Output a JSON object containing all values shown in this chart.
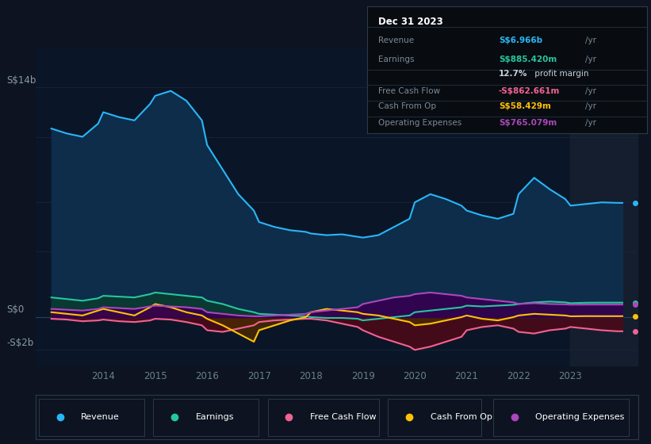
{
  "bg_color": "#0d1320",
  "plot_bg_color": "#0a1628",
  "grid_color": "#1a2f4a",
  "ylabel_top": "S$14b",
  "ylabel_zero": "S$0",
  "ylabel_neg": "-S$2b",
  "years": [
    2013.0,
    2013.3,
    2013.6,
    2013.9,
    2014.0,
    2014.3,
    2014.6,
    2014.9,
    2015.0,
    2015.3,
    2015.6,
    2015.9,
    2016.0,
    2016.3,
    2016.6,
    2016.9,
    2017.0,
    2017.3,
    2017.6,
    2017.9,
    2018.0,
    2018.3,
    2018.6,
    2018.9,
    2019.0,
    2019.3,
    2019.6,
    2019.9,
    2020.0,
    2020.3,
    2020.6,
    2020.9,
    2021.0,
    2021.3,
    2021.6,
    2021.9,
    2022.0,
    2022.3,
    2022.6,
    2022.9,
    2023.0,
    2023.3,
    2023.6,
    2023.9,
    2024.0
  ],
  "revenue": [
    11.5,
    11.2,
    11.0,
    11.8,
    12.5,
    12.2,
    12.0,
    13.0,
    13.5,
    13.8,
    13.2,
    12.0,
    10.5,
    9.0,
    7.5,
    6.5,
    5.8,
    5.5,
    5.3,
    5.2,
    5.1,
    5.0,
    5.05,
    4.9,
    4.85,
    5.0,
    5.5,
    6.0,
    7.0,
    7.5,
    7.2,
    6.8,
    6.5,
    6.2,
    6.0,
    6.3,
    7.5,
    8.5,
    7.8,
    7.2,
    6.8,
    6.9,
    7.0,
    6.97,
    6.97
  ],
  "earnings": [
    1.2,
    1.1,
    1.0,
    1.15,
    1.3,
    1.25,
    1.2,
    1.4,
    1.5,
    1.4,
    1.3,
    1.2,
    1.0,
    0.8,
    0.5,
    0.3,
    0.2,
    0.15,
    0.1,
    0.05,
    0.0,
    -0.05,
    -0.05,
    -0.1,
    -0.2,
    -0.1,
    0.0,
    0.1,
    0.3,
    0.4,
    0.5,
    0.6,
    0.7,
    0.65,
    0.7,
    0.75,
    0.8,
    0.9,
    0.95,
    0.9,
    0.85,
    0.88,
    0.885,
    0.885,
    0.885
  ],
  "free_cash_flow": [
    -0.1,
    -0.15,
    -0.25,
    -0.2,
    -0.15,
    -0.25,
    -0.3,
    -0.2,
    -0.1,
    -0.15,
    -0.3,
    -0.5,
    -0.8,
    -0.9,
    -0.7,
    -0.5,
    -0.3,
    -0.2,
    -0.15,
    -0.1,
    -0.1,
    -0.2,
    -0.4,
    -0.6,
    -0.8,
    -1.2,
    -1.5,
    -1.8,
    -2.0,
    -1.8,
    -1.5,
    -1.2,
    -0.8,
    -0.6,
    -0.5,
    -0.7,
    -0.9,
    -1.0,
    -0.8,
    -0.7,
    -0.6,
    -0.7,
    -0.8,
    -0.862,
    -0.862
  ],
  "cash_from_op": [
    0.3,
    0.2,
    0.1,
    0.4,
    0.5,
    0.3,
    0.1,
    0.6,
    0.8,
    0.6,
    0.3,
    0.1,
    -0.1,
    -0.5,
    -1.0,
    -1.5,
    -0.8,
    -0.5,
    -0.2,
    0.0,
    0.3,
    0.5,
    0.4,
    0.3,
    0.2,
    0.1,
    -0.1,
    -0.3,
    -0.5,
    -0.4,
    -0.2,
    0.0,
    0.1,
    -0.1,
    -0.2,
    0.0,
    0.1,
    0.2,
    0.15,
    0.1,
    0.05,
    0.06,
    0.058,
    0.058,
    0.058
  ],
  "operating_expenses": [
    0.5,
    0.45,
    0.4,
    0.5,
    0.6,
    0.55,
    0.5,
    0.65,
    0.7,
    0.65,
    0.6,
    0.5,
    0.3,
    0.2,
    0.1,
    0.05,
    0.05,
    0.1,
    0.15,
    0.2,
    0.3,
    0.4,
    0.5,
    0.6,
    0.8,
    1.0,
    1.2,
    1.3,
    1.4,
    1.5,
    1.4,
    1.3,
    1.2,
    1.1,
    1.0,
    0.9,
    0.8,
    0.85,
    0.8,
    0.78,
    0.76,
    0.765,
    0.765,
    0.765,
    0.765
  ],
  "revenue_color": "#29b6f6",
  "earnings_color": "#26c6a0",
  "free_cash_flow_color": "#f06292",
  "cash_from_op_color": "#ffc107",
  "operating_expenses_color": "#ab47bc",
  "revenue_fill": "#0d2d4a",
  "earnings_fill": "#0a3a30",
  "fcf_fill": "#4a0a18",
  "cashop_fill_pos": "#5a3a00",
  "cashop_fill_neg": "#5a3a00",
  "opex_fill": "#350050",
  "info_box": {
    "title": "Dec 31 2023",
    "rows": [
      {
        "label": "Revenue",
        "value": "S$6.966b",
        "unit": "/yr",
        "value_color": "#29b6f6",
        "has_sub": false
      },
      {
        "label": "Earnings",
        "value": "S$885.420m",
        "unit": "/yr",
        "value_color": "#26c6a0",
        "has_sub": true,
        "sub": "12.7% profit margin"
      },
      {
        "label": "Free Cash Flow",
        "value": "-S$862.661m",
        "unit": "/yr",
        "value_color": "#f06292",
        "has_sub": false
      },
      {
        "label": "Cash From Op",
        "value": "S$58.429m",
        "unit": "/yr",
        "value_color": "#ffc107",
        "has_sub": false
      },
      {
        "label": "Operating Expenses",
        "value": "S$765.079m",
        "unit": "/yr",
        "value_color": "#ab47bc",
        "has_sub": false
      }
    ]
  },
  "legend_items": [
    {
      "label": "Revenue",
      "color": "#29b6f6"
    },
    {
      "label": "Earnings",
      "color": "#26c6a0"
    },
    {
      "label": "Free Cash Flow",
      "color": "#f06292"
    },
    {
      "label": "Cash From Op",
      "color": "#ffc107"
    },
    {
      "label": "Operating Expenses",
      "color": "#ab47bc"
    }
  ],
  "xtick_labels": [
    "",
    "2014",
    "2015",
    "2016",
    "2017",
    "2018",
    "2019",
    "2020",
    "2021",
    "2022",
    "2023"
  ],
  "xtick_pos": [
    2013,
    2014,
    2015,
    2016,
    2017,
    2018,
    2019,
    2020,
    2021,
    2022,
    2023
  ],
  "xlim": [
    2012.7,
    2024.3
  ],
  "ylim": [
    -3.0,
    16.5
  ],
  "highlight_x_start": 2023.0
}
